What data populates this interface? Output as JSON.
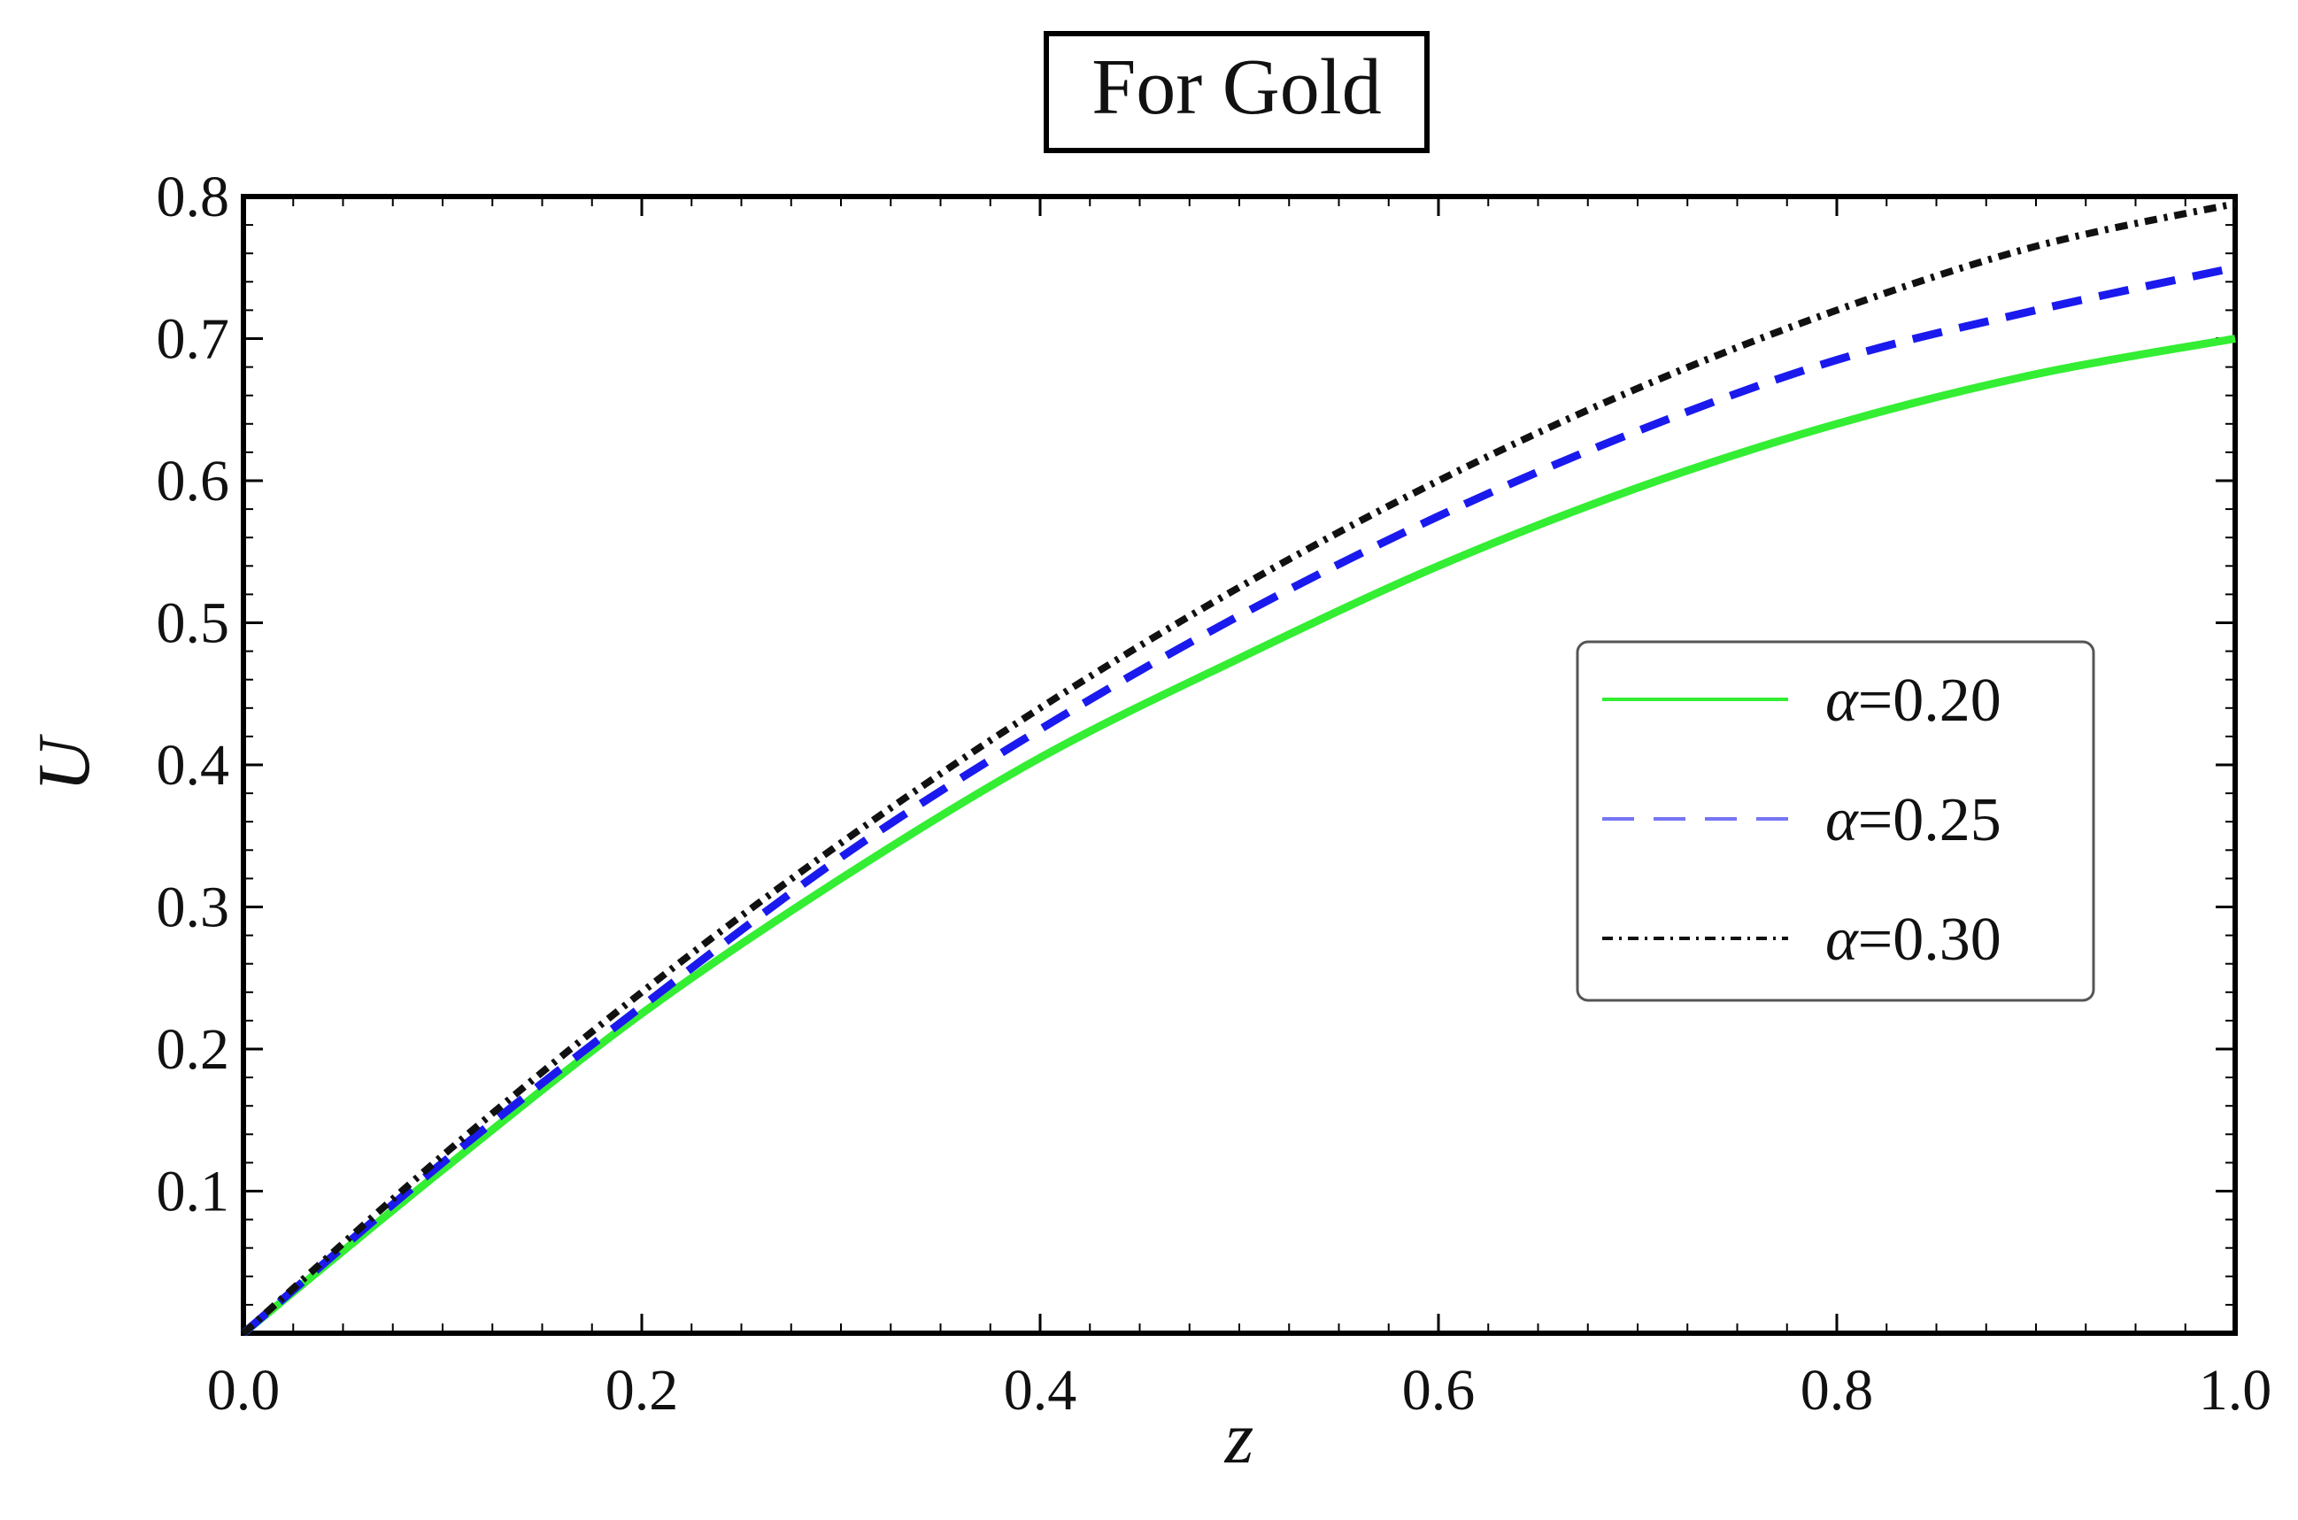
{
  "chart_data": {
    "type": "line",
    "title": "For Gold",
    "xlabel": "z",
    "ylabel": "U",
    "xlim": [
      0,
      1
    ],
    "ylim": [
      0,
      0.8
    ],
    "xticks": [
      0.0,
      0.2,
      0.4,
      0.6,
      0.8,
      1.0
    ],
    "xtick_labels": [
      "0.0",
      "0.2",
      "0.4",
      "0.6",
      "0.8",
      "1.0"
    ],
    "yticks": [
      0.1,
      0.2,
      0.3,
      0.4,
      0.5,
      0.6,
      0.7,
      0.8
    ],
    "ytick_labels": [
      "0.1",
      "0.2",
      "0.3",
      "0.4",
      "0.5",
      "0.6",
      "0.7",
      "0.8"
    ],
    "legend_position": "center-right",
    "x": [
      0.0,
      0.1,
      0.2,
      0.3,
      0.4,
      0.5,
      0.6,
      0.7,
      0.8,
      0.9,
      1.0
    ],
    "series": [
      {
        "name": "α=0.20",
        "symbol": "α",
        "value_text": "=0.20",
        "color": "#33ee33",
        "style": "solid",
        "values": [
          0.0,
          0.115,
          0.225,
          0.32,
          0.405,
          0.475,
          0.54,
          0.595,
          0.64,
          0.675,
          0.7
        ]
      },
      {
        "name": "α=0.25",
        "symbol": "α",
        "value_text": "=0.25",
        "color": "#1a1aee",
        "style": "dashed",
        "values": [
          0.0,
          0.12,
          0.23,
          0.335,
          0.425,
          0.505,
          0.575,
          0.635,
          0.685,
          0.72,
          0.75
        ]
      },
      {
        "name": "α=0.30",
        "symbol": "α",
        "value_text": "=0.30",
        "color": "#111111",
        "style": "dashdot",
        "values": [
          0.0,
          0.125,
          0.24,
          0.345,
          0.44,
          0.525,
          0.6,
          0.665,
          0.72,
          0.765,
          0.795
        ]
      }
    ]
  }
}
